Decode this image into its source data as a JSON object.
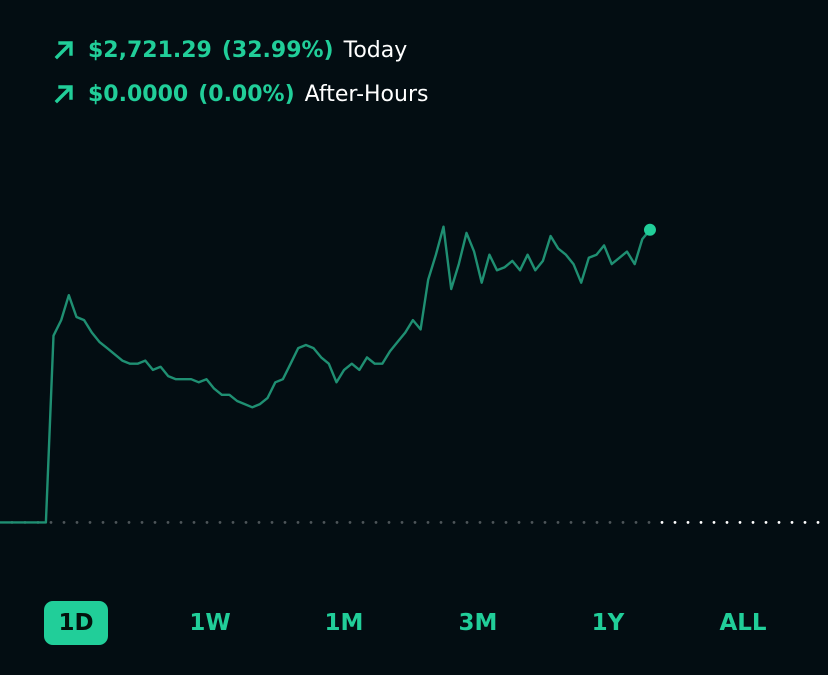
{
  "colors": {
    "background": "#030d12",
    "accent": "#21ce99",
    "line": "#1f8f72",
    "baseline_past": "#4d5559",
    "baseline_future": "#ffffff"
  },
  "today": {
    "icon": "arrow-up-right-icon",
    "amount": "$2,721.29",
    "percent": "(32.99%)",
    "label": "Today"
  },
  "after_hours": {
    "icon": "arrow-up-right-icon",
    "amount": "$0.0000",
    "percent": "(0.00%)",
    "label": "After-Hours"
  },
  "ranges": [
    "1D",
    "1W",
    "1M",
    "3M",
    "1Y",
    "ALL"
  ],
  "active_range": "1D",
  "chart_data": {
    "type": "line",
    "series": [
      {
        "values": [
          0,
          0,
          0,
          0,
          0,
          0,
          0,
          60,
          65,
          73,
          66,
          65,
          61,
          58,
          56,
          54,
          52,
          51,
          51,
          52,
          49,
          50,
          47,
          46,
          46,
          46,
          45,
          46,
          43,
          41,
          41,
          39,
          38,
          37,
          38,
          40,
          45,
          46,
          51,
          56,
          57,
          56,
          53,
          51,
          45,
          49,
          51,
          49,
          53,
          51,
          51,
          55,
          58,
          61,
          65,
          62,
          78,
          86,
          95,
          75,
          83,
          93,
          87,
          77,
          86,
          81,
          82,
          84,
          81,
          86,
          81,
          84,
          92,
          88,
          86,
          83,
          77,
          85,
          86,
          89,
          83,
          85,
          87,
          83,
          91,
          94
        ]
      }
    ],
    "previous_close": 0,
    "ylim": [
      -5,
      110
    ],
    "x_filled_fraction": 0.785,
    "grid": false
  }
}
